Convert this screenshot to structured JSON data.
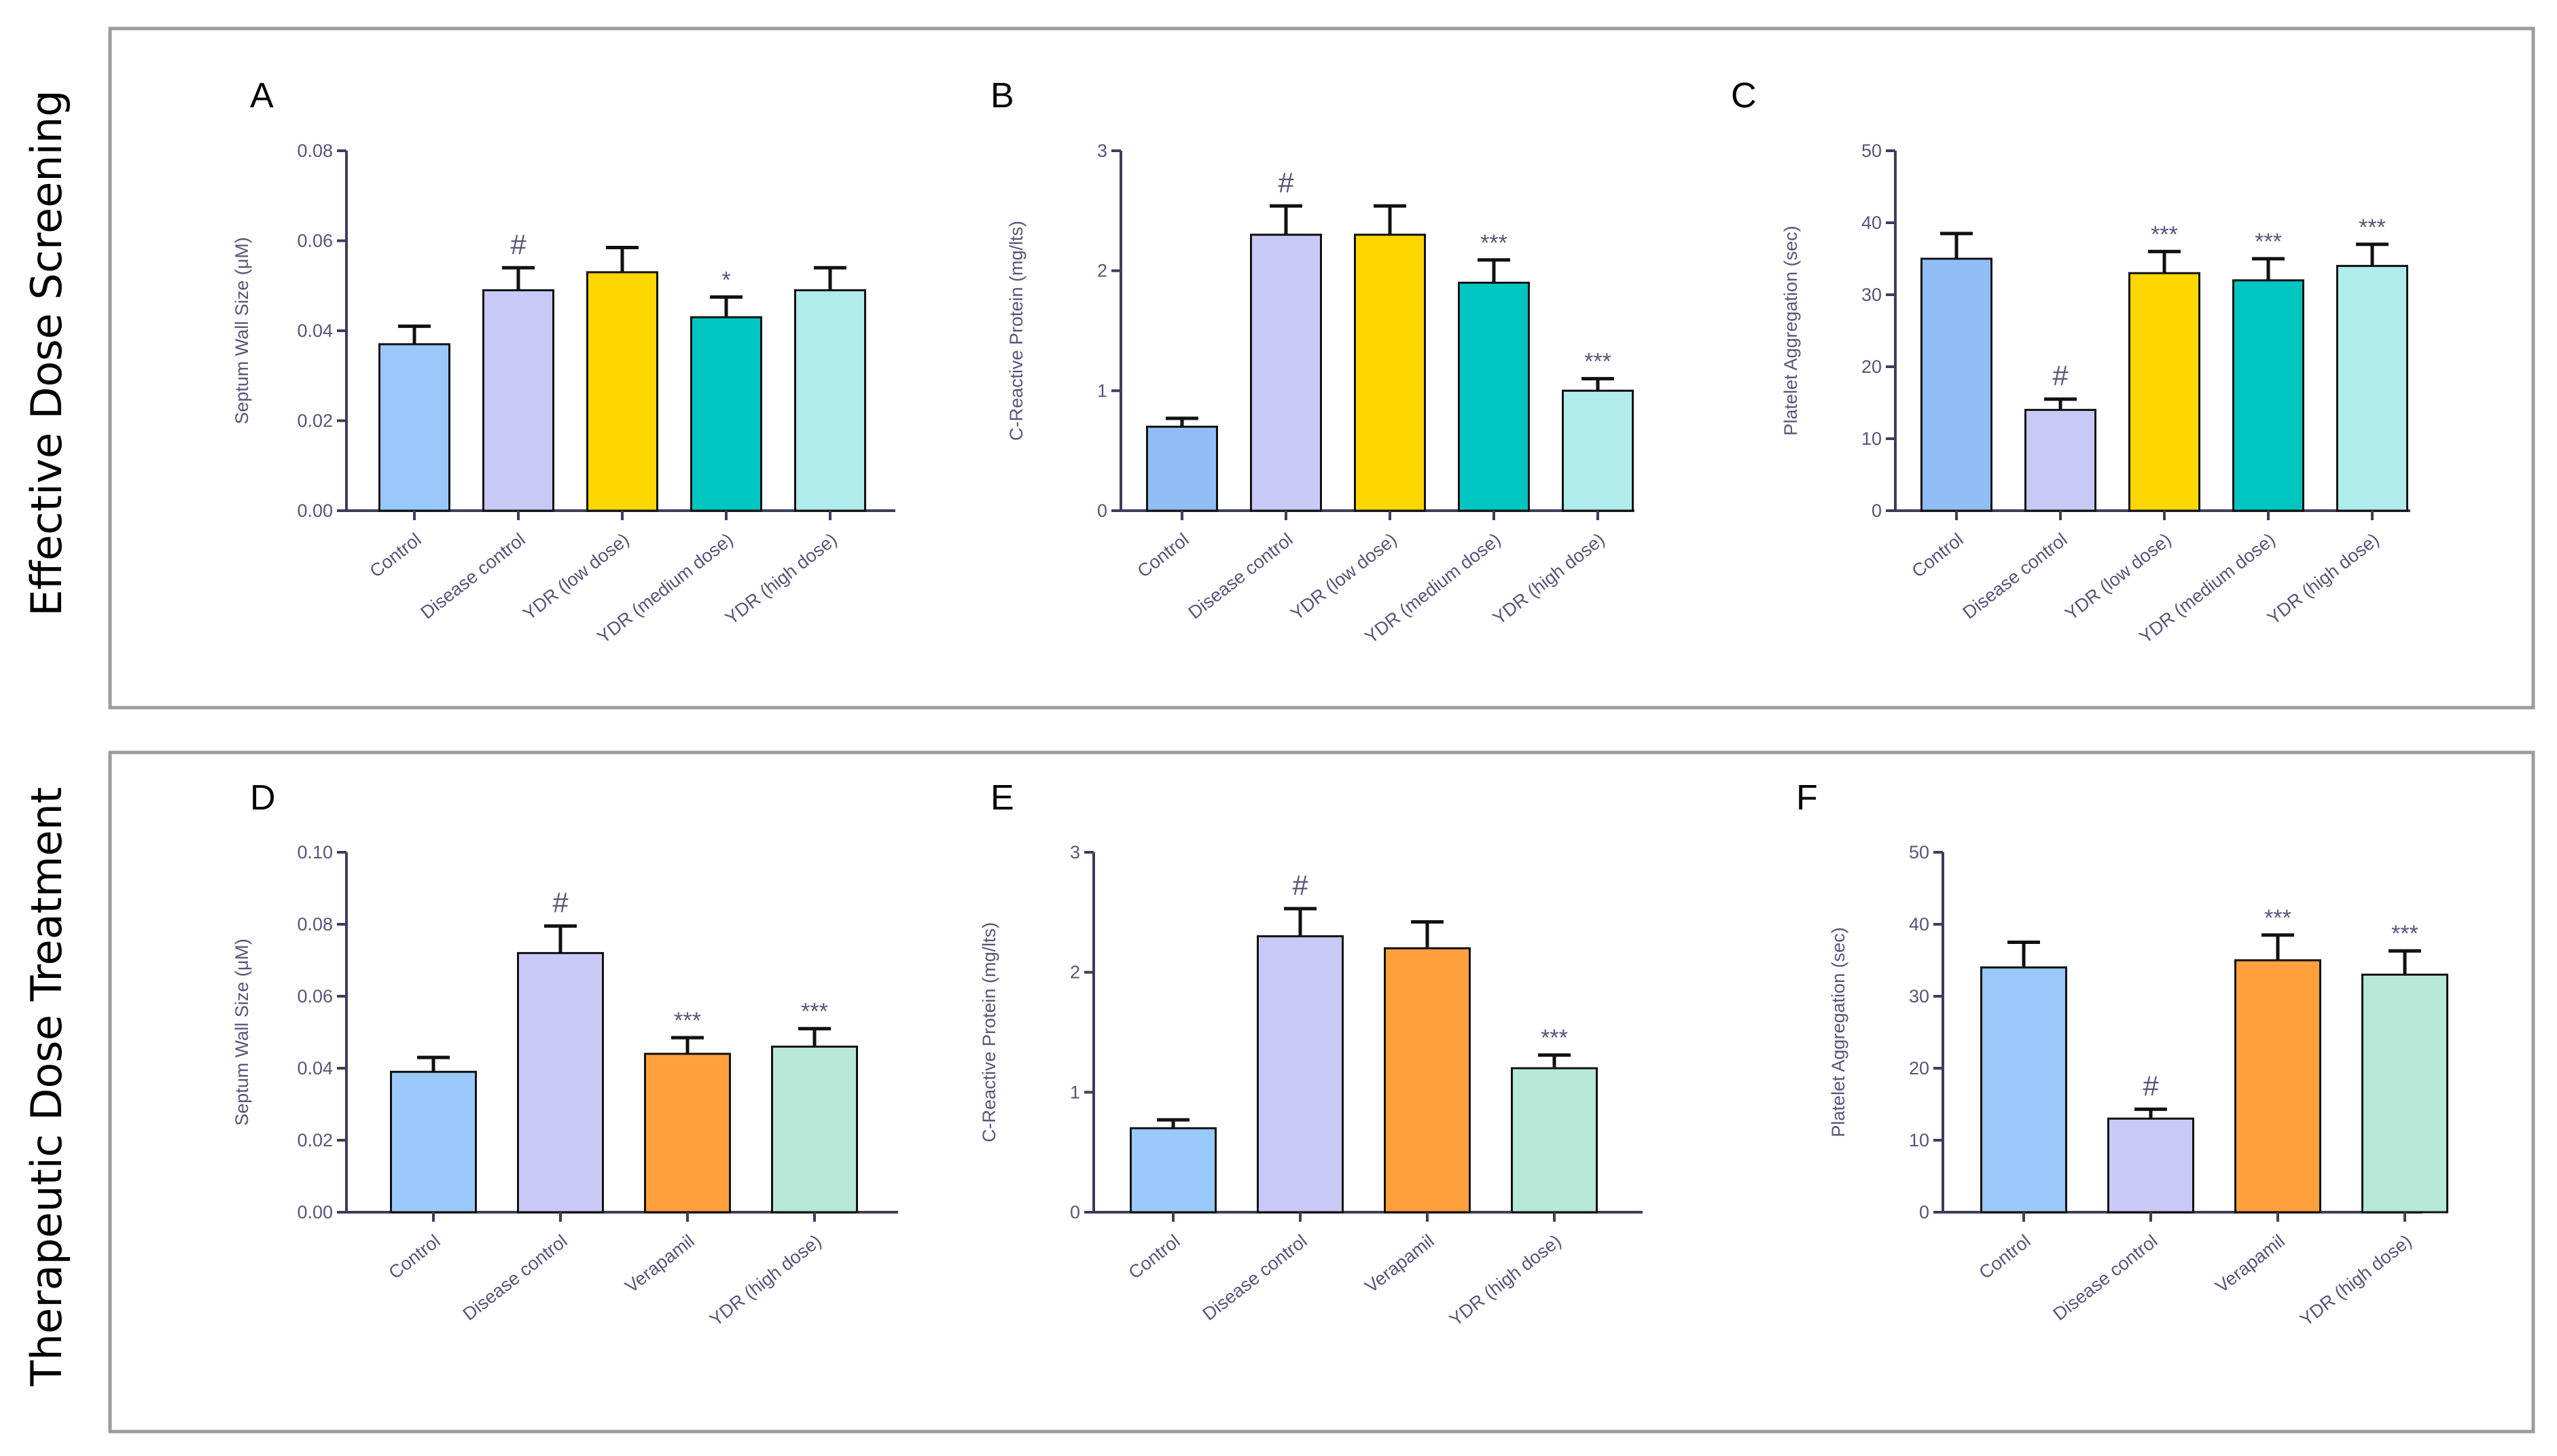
{
  "sections": [
    {
      "label": "Effective Dose Screening"
    },
    {
      "label": "Therapeutic Dose Treatment"
    }
  ],
  "chart_data": [
    {
      "panel": "A",
      "type": "bar",
      "ylabel": "Septum Wall Size (μM)",
      "ylim": [
        0,
        0.08
      ],
      "yticks": [
        "0.00",
        "0.02",
        "0.04",
        "0.06",
        "0.08"
      ],
      "categories": [
        "Control",
        "Disease control",
        "YDR (low dose)",
        "YDR (medium dose)",
        "YDR (high dose)"
      ],
      "values": [
        0.037,
        0.049,
        0.053,
        0.043,
        0.049
      ],
      "errors": [
        0.004,
        0.005,
        0.0055,
        0.0045,
        0.005
      ],
      "annotations": [
        "",
        "#",
        "",
        "*",
        ""
      ],
      "colors": [
        "#99c9fb",
        "#c9c9f7",
        "#fed700",
        "#00c6c1",
        "#b0ecec"
      ]
    },
    {
      "panel": "B",
      "type": "bar",
      "ylabel": "C-Reactive Protein (mg/lts)",
      "ylim": [
        0,
        3
      ],
      "yticks": [
        "0",
        "1",
        "2",
        "3"
      ],
      "categories": [
        "Control",
        "Disease control",
        "YDR (low dose)",
        "YDR (medium dose)",
        "YDR (high dose)"
      ],
      "values": [
        0.7,
        2.3,
        2.3,
        1.9,
        1.0
      ],
      "errors": [
        0.07,
        0.24,
        0.24,
        0.19,
        0.1
      ],
      "annotations": [
        "",
        "#",
        "",
        "***",
        "***"
      ],
      "colors": [
        "#91bdf6",
        "#c9c9f7",
        "#fed700",
        "#00c6c1",
        "#b0ecec"
      ]
    },
    {
      "panel": "C",
      "type": "bar",
      "ylabel": "Platelet Aggregation (sec)",
      "ylim": [
        0,
        50
      ],
      "yticks": [
        "0",
        "10",
        "20",
        "30",
        "40",
        "50"
      ],
      "categories": [
        "Control",
        "Disease control",
        "YDR (low dose)",
        "YDR (medium dose)",
        "YDR (high dose)"
      ],
      "values": [
        35,
        14,
        33,
        32,
        34
      ],
      "errors": [
        3.5,
        1.5,
        3,
        3,
        3
      ],
      "annotations": [
        "",
        "#",
        "***",
        "***",
        "***"
      ],
      "colors": [
        "#91bdf6",
        "#c9c9f7",
        "#fed700",
        "#00c6c1",
        "#b0ecec"
      ]
    },
    {
      "panel": "D",
      "type": "bar",
      "ylabel": "Septum Wall Size (μM)",
      "ylim": [
        0,
        0.1
      ],
      "yticks": [
        "0.00",
        "0.02",
        "0.04",
        "0.06",
        "0.08",
        "0.10"
      ],
      "categories": [
        "Control",
        "Disease control",
        "Verapamil",
        "YDR (high dose)"
      ],
      "values": [
        0.039,
        0.072,
        0.044,
        0.046
      ],
      "errors": [
        0.004,
        0.0075,
        0.0045,
        0.005
      ],
      "annotations": [
        "",
        "#",
        "***",
        "***"
      ],
      "colors": [
        "#99c9fb",
        "#c9c9f7",
        "#ffa03c",
        "#b8e8d8"
      ]
    },
    {
      "panel": "E",
      "type": "bar",
      "ylabel": "C-Reactive Protein (mg/lts)",
      "ylim": [
        0,
        3
      ],
      "yticks": [
        "0",
        "1",
        "2",
        "3"
      ],
      "categories": [
        "Control",
        "Disease control",
        "Verapamil",
        "YDR (high dose)"
      ],
      "values": [
        0.7,
        2.3,
        2.2,
        1.2
      ],
      "errors": [
        0.07,
        0.23,
        0.22,
        0.11
      ],
      "annotations": [
        "",
        "#",
        "",
        "***"
      ],
      "colors": [
        "#99c9fb",
        "#c9c9f7",
        "#ffa03c",
        "#b8e8d8"
      ]
    },
    {
      "panel": "F",
      "type": "bar",
      "ylabel": "Platelet Aggregation (sec)",
      "ylim": [
        0,
        50
      ],
      "yticks": [
        "0",
        "10",
        "20",
        "30",
        "40",
        "50"
      ],
      "categories": [
        "Control",
        "Disease control",
        "Verapamil",
        "YDR (high dose)"
      ],
      "values": [
        34,
        13,
        35,
        33
      ],
      "errors": [
        3.5,
        1.3,
        3.5,
        3.3
      ],
      "annotations": [
        "",
        "#",
        "***",
        "***"
      ],
      "colors": [
        "#99c9fb",
        "#c9c9f7",
        "#ffa03c",
        "#b8e8d8"
      ]
    }
  ]
}
